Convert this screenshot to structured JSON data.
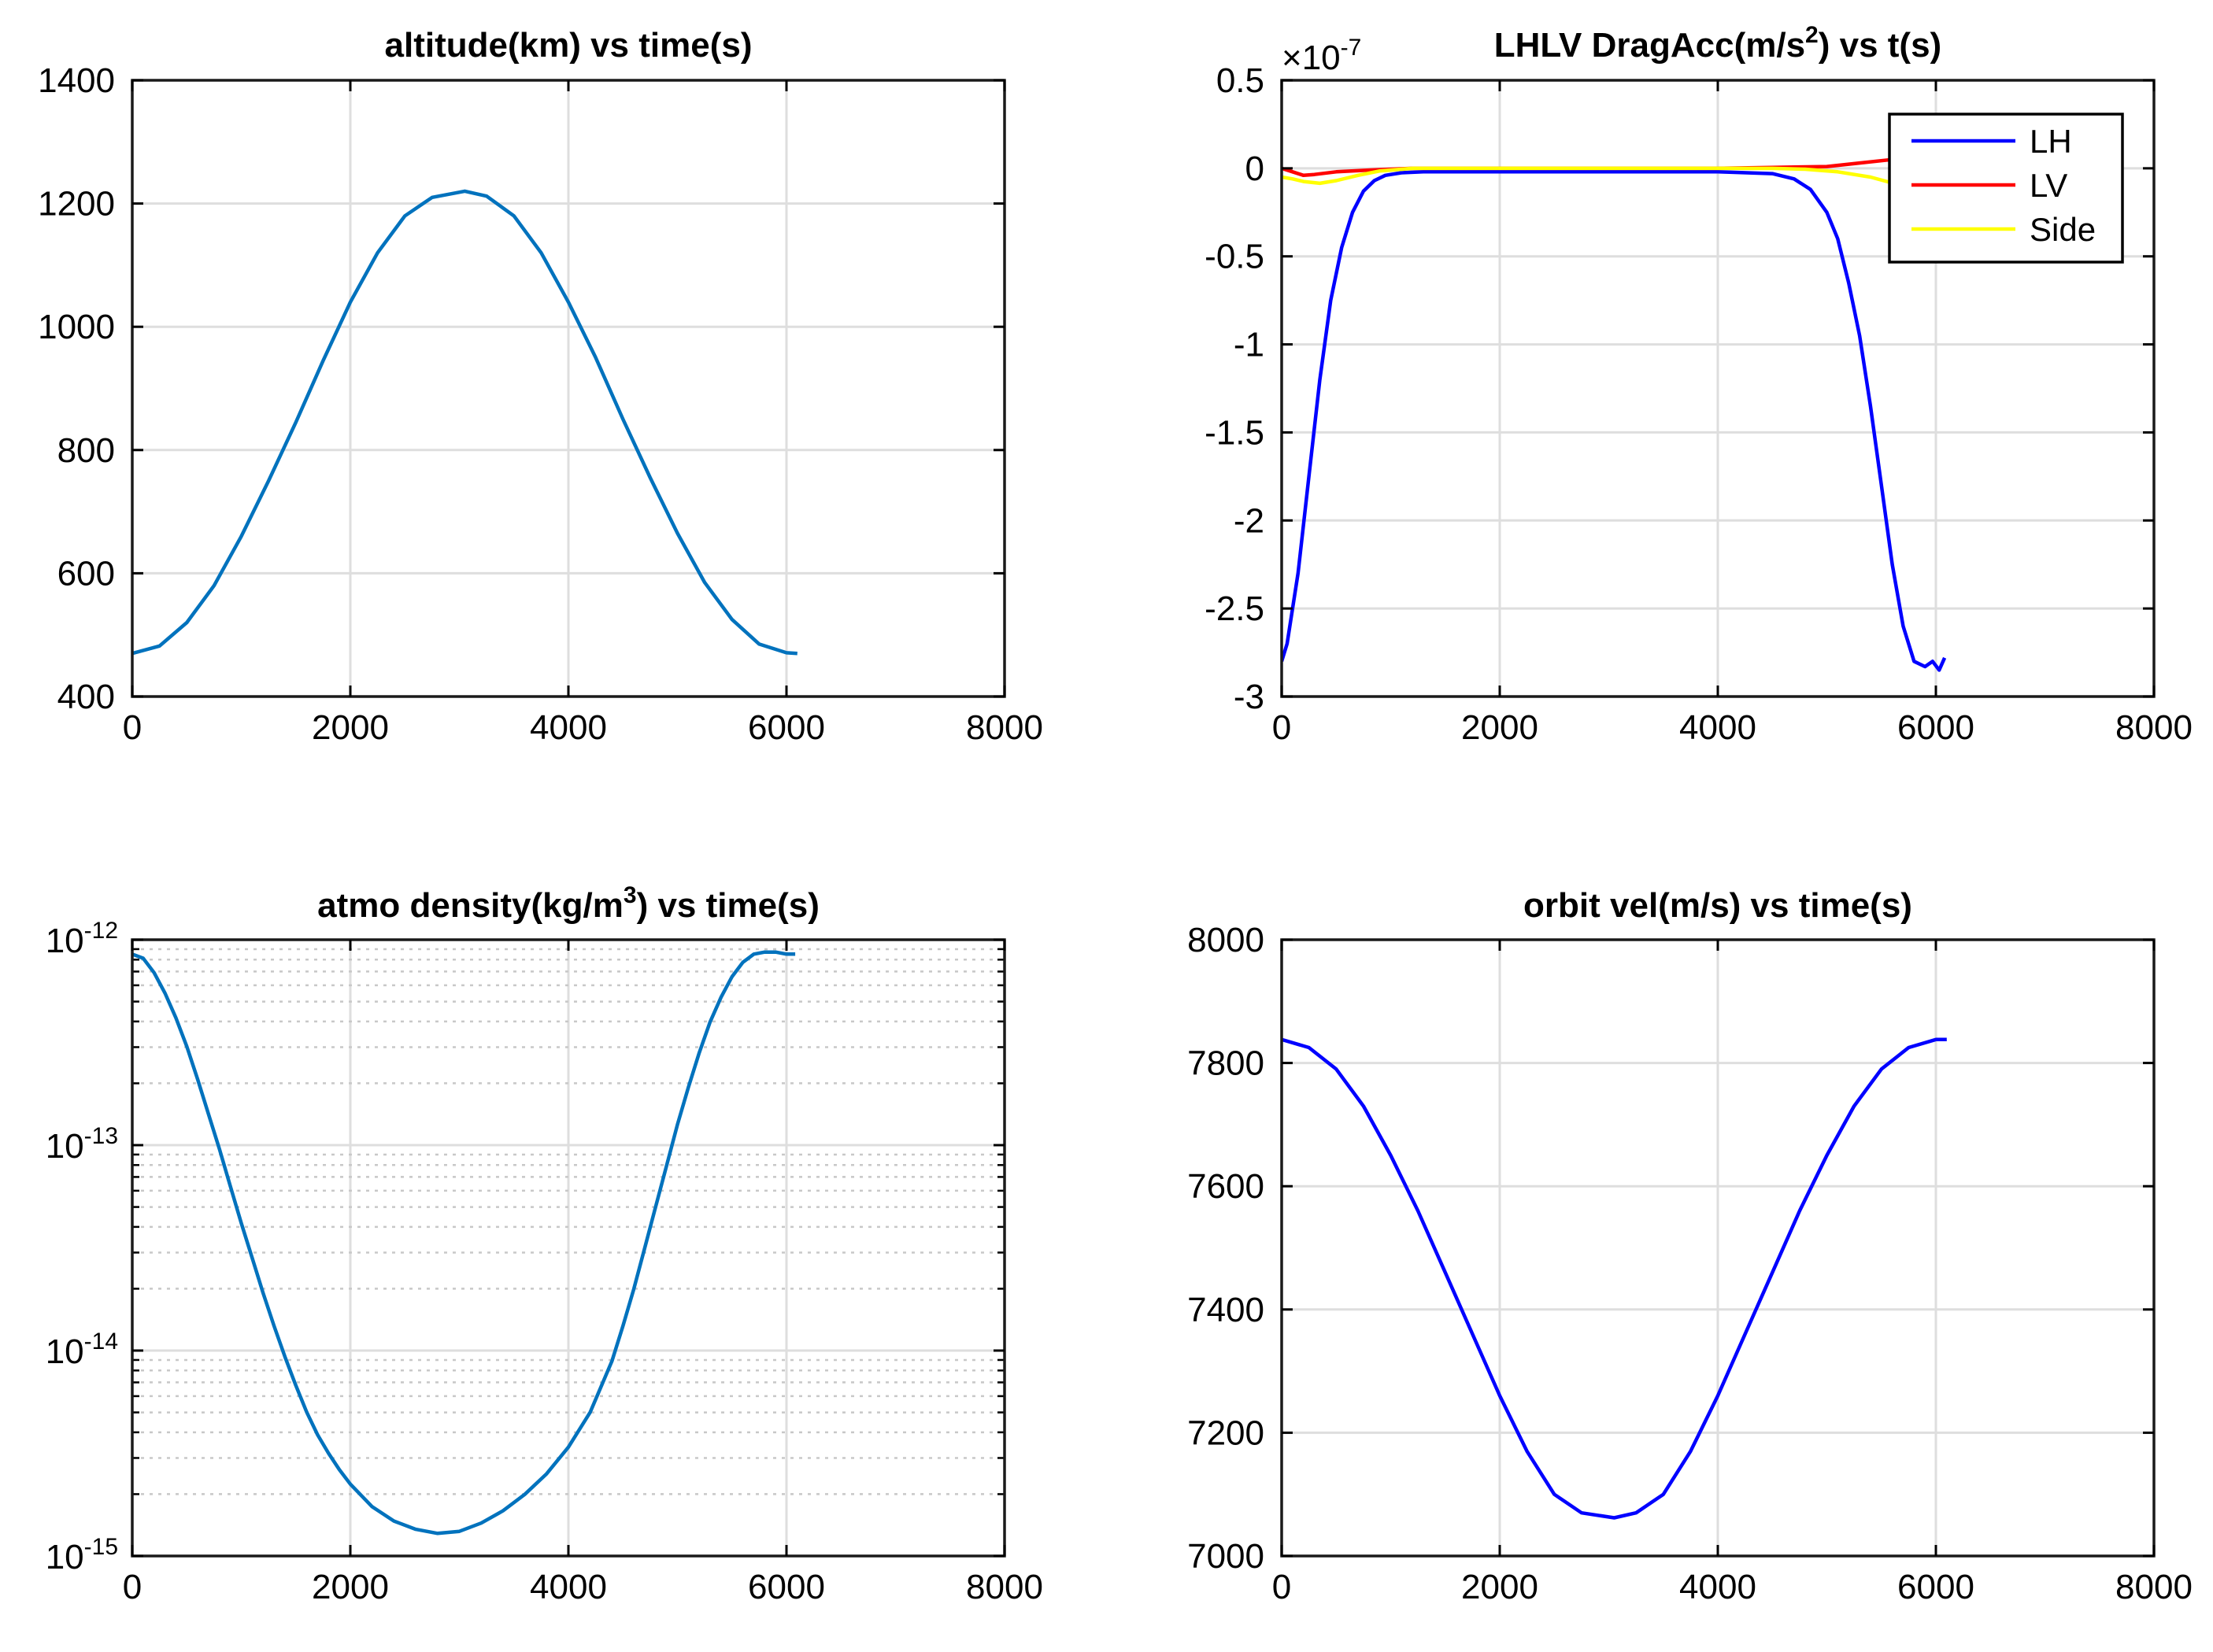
{
  "chart_data": [
    {
      "type": "line",
      "title": "altitude(km) vs time(s)",
      "xlabel": "",
      "ylabel": "",
      "xlim": [
        0,
        8000
      ],
      "ylim": [
        400,
        1400
      ],
      "xticks": [
        0,
        2000,
        4000,
        6000,
        8000
      ],
      "xtick_labels": [
        "0",
        "2000",
        "4000",
        "6000",
        "8000"
      ],
      "yticks": [
        400,
        600,
        800,
        1000,
        1200,
        1400
      ],
      "ytick_labels": [
        "400",
        "600",
        "800",
        "1000",
        "1200",
        "1400"
      ],
      "grid": true,
      "series": [
        {
          "name": "altitude",
          "color": "#0072bd",
          "x": [
            0,
            250,
            500,
            750,
            1000,
            1250,
            1500,
            1750,
            2000,
            2250,
            2500,
            2750,
            3050,
            3250,
            3500,
            3750,
            4000,
            4250,
            4500,
            4750,
            5000,
            5250,
            5500,
            5750,
            6000,
            6100
          ],
          "y": [
            470,
            482,
            520,
            580,
            660,
            750,
            845,
            945,
            1040,
            1120,
            1180,
            1210,
            1220,
            1212,
            1180,
            1120,
            1040,
            950,
            850,
            755,
            665,
            585,
            525,
            485,
            471,
            470
          ]
        }
      ]
    },
    {
      "type": "line",
      "title": "LHLV DragAcc(m/s",
      "title_sup": "2",
      "title_tail": ") vs t(s)",
      "exponent_base": "×10",
      "exponent_power": "-7",
      "xlabel": "",
      "ylabel": "",
      "xlim": [
        0,
        8000
      ],
      "ylim": [
        -3,
        0.5
      ],
      "xticks": [
        0,
        2000,
        4000,
        6000,
        8000
      ],
      "xtick_labels": [
        "0",
        "2000",
        "4000",
        "6000",
        "8000"
      ],
      "yticks": [
        -3,
        -2.5,
        -2,
        -1.5,
        -1,
        -0.5,
        0,
        0.5
      ],
      "ytick_labels": [
        "-3",
        "-2.5",
        "-2",
        "-1.5",
        "-1",
        "-0.5",
        "0",
        "0.5"
      ],
      "grid": true,
      "legend": "top-right",
      "series": [
        {
          "name": "LH",
          "color": "#0000ff",
          "x": [
            0,
            50,
            150,
            250,
            350,
            450,
            550,
            650,
            750,
            850,
            950,
            1100,
            1300,
            1600,
            2000,
            3000,
            4000,
            4500,
            4700,
            4850,
            5000,
            5100,
            5200,
            5300,
            5400,
            5500,
            5600,
            5700,
            5800,
            5900,
            5970,
            6030,
            6080
          ],
          "y": [
            -2.8,
            -2.7,
            -2.3,
            -1.75,
            -1.2,
            -0.75,
            -0.45,
            -0.25,
            -0.13,
            -0.07,
            -0.04,
            -0.025,
            -0.02,
            -0.02,
            -0.02,
            -0.02,
            -0.02,
            -0.03,
            -0.06,
            -0.12,
            -0.25,
            -0.4,
            -0.65,
            -0.95,
            -1.35,
            -1.8,
            -2.25,
            -2.6,
            -2.8,
            -2.83,
            -2.8,
            -2.85,
            -2.78
          ]
        },
        {
          "name": "LV",
          "color": "#ff0000",
          "x": [
            0,
            100,
            200,
            300,
            500,
            800,
            1200,
            2000,
            3000,
            4000,
            4500,
            5000,
            5300,
            5600,
            5800,
            6000,
            6080
          ],
          "y": [
            0.0,
            -0.02,
            -0.04,
            -0.035,
            -0.02,
            -0.01,
            0,
            0,
            0,
            0,
            0.005,
            0.01,
            0.03,
            0.05,
            0.04,
            0.02,
            0.01
          ]
        },
        {
          "name": "Side",
          "color": "#ffff00",
          "x": [
            0,
            100,
            200,
            350,
            500,
            700,
            900,
            1200,
            2000,
            3000,
            4000,
            4500,
            4800,
            5100,
            5400,
            5700,
            5900,
            6080
          ],
          "y": [
            -0.05,
            -0.06,
            -0.075,
            -0.085,
            -0.07,
            -0.04,
            -0.015,
            0,
            0,
            0,
            0,
            0,
            -0.005,
            -0.02,
            -0.05,
            -0.1,
            -0.13,
            -0.12
          ]
        }
      ]
    },
    {
      "type": "line",
      "yscale": "log",
      "title": "atmo density(kg/m",
      "title_sup": "3",
      "title_tail": ") vs time(s)",
      "xlabel": "",
      "ylabel": "",
      "xlim": [
        0,
        8000
      ],
      "ylim": [
        1e-15,
        1e-12
      ],
      "xticks": [
        0,
        2000,
        4000,
        6000,
        8000
      ],
      "xtick_labels": [
        "0",
        "2000",
        "4000",
        "6000",
        "8000"
      ],
      "ytick_exponents": [
        -15,
        -14,
        -13,
        -12
      ],
      "ytick_base": "10",
      "ytick_labels": [
        "-15",
        "-14",
        "-13",
        "-12"
      ],
      "grid": true,
      "minor_grid": true,
      "series": [
        {
          "name": "density",
          "color": "#0072bd",
          "x": [
            0,
            100,
            200,
            300,
            400,
            500,
            600,
            700,
            800,
            900,
            1000,
            1100,
            1200,
            1300,
            1400,
            1500,
            1600,
            1700,
            1800,
            1900,
            2000,
            2200,
            2400,
            2600,
            2800,
            3000,
            3200,
            3400,
            3600,
            3800,
            4000,
            4200,
            4400,
            4500,
            4600,
            4700,
            4800,
            4900,
            5000,
            5100,
            5200,
            5300,
            5400,
            5500,
            5600,
            5700,
            5800,
            5900,
            6000,
            6080
          ],
          "y": [
            -12.07,
            -12.09,
            -12.16,
            -12.26,
            -12.38,
            -12.52,
            -12.68,
            -12.85,
            -13.02,
            -13.2,
            -13.38,
            -13.55,
            -13.72,
            -13.88,
            -14.03,
            -14.17,
            -14.3,
            -14.41,
            -14.5,
            -14.58,
            -14.65,
            -14.76,
            -14.83,
            -14.87,
            -14.89,
            -14.88,
            -14.84,
            -14.78,
            -14.7,
            -14.6,
            -14.47,
            -14.3,
            -14.05,
            -13.88,
            -13.7,
            -13.5,
            -13.3,
            -13.1,
            -12.9,
            -12.72,
            -12.55,
            -12.4,
            -12.28,
            -12.18,
            -12.11,
            -12.07,
            -12.06,
            -12.06,
            -12.07,
            -12.07
          ]
        }
      ]
    },
    {
      "type": "line",
      "title": "orbit vel(m/s) vs time(s)",
      "xlabel": "",
      "ylabel": "",
      "xlim": [
        0,
        8000
      ],
      "ylim": [
        7000,
        8000
      ],
      "xticks": [
        0,
        2000,
        4000,
        6000,
        8000
      ],
      "xtick_labels": [
        "0",
        "2000",
        "4000",
        "6000",
        "8000"
      ],
      "yticks": [
        7000,
        7200,
        7400,
        7600,
        7800,
        8000
      ],
      "ytick_labels": [
        "7000",
        "7200",
        "7400",
        "7600",
        "7800",
        "8000"
      ],
      "grid": true,
      "series": [
        {
          "name": "velocity",
          "color": "#0000ff",
          "x": [
            0,
            250,
            500,
            750,
            1000,
            1250,
            1500,
            1750,
            2000,
            2250,
            2500,
            2750,
            3050,
            3250,
            3500,
            3750,
            4000,
            4250,
            4500,
            4750,
            5000,
            5250,
            5500,
            5750,
            6000,
            6100
          ],
          "y": [
            7838,
            7825,
            7790,
            7730,
            7650,
            7560,
            7460,
            7360,
            7260,
            7170,
            7100,
            7070,
            7062,
            7070,
            7100,
            7170,
            7260,
            7360,
            7460,
            7560,
            7650,
            7730,
            7790,
            7825,
            7838,
            7838
          ]
        }
      ]
    }
  ]
}
